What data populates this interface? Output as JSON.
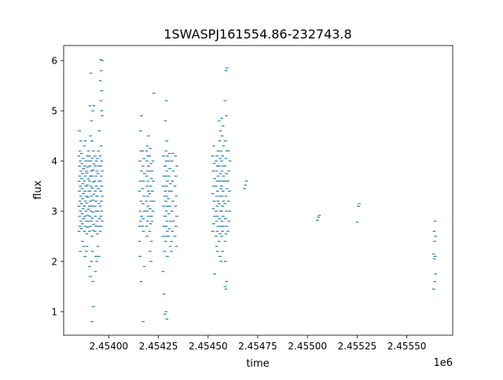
{
  "chart_data": {
    "type": "scatter",
    "title": "1SWASPJ161554.86-232743.8",
    "xlabel": "time",
    "ylabel": "flux",
    "x_offset_label": "1e6",
    "xlim": [
      2453773,
      2455731
    ],
    "ylim": [
      0.53,
      6.3
    ],
    "xticks": [
      2454000,
      2454250,
      2454500,
      2454750,
      2455000,
      2455250,
      2455500
    ],
    "xtick_labels": [
      "2.45400",
      "2.45425",
      "2.45450",
      "2.45475",
      "2.45500",
      "2.45525",
      "2.45550"
    ],
    "yticks": [
      1,
      2,
      3,
      4,
      5,
      6
    ],
    "ytick_labels": [
      "1",
      "2",
      "3",
      "4",
      "5",
      "6"
    ],
    "grid": false,
    "marker_color": "#1f77b4",
    "columns": [
      {
        "x": 2453855,
        "y": [
          2.6,
          2.7,
          2.8,
          2.9,
          3.0,
          3.1,
          3.2,
          3.3,
          3.4,
          3.5,
          3.6,
          3.7,
          3.8,
          3.9,
          4.0,
          4.1,
          4.2,
          4.4,
          4.6,
          2.2
        ]
      },
      {
        "x": 2453868,
        "y": [
          2.65,
          2.75,
          2.85,
          2.95,
          3.05,
          3.15,
          3.25,
          3.35,
          3.45,
          3.55,
          3.65,
          3.75,
          3.85,
          3.95,
          4.05,
          4.15,
          2.4,
          2.3
        ]
      },
      {
        "x": 2453882,
        "y": [
          2.6,
          2.7,
          2.8,
          2.9,
          3.0,
          3.1,
          3.2,
          3.3,
          3.4,
          3.5,
          3.6,
          3.7,
          3.8,
          3.9,
          4.0,
          4.3,
          4.4,
          2.2,
          2.1
        ]
      },
      {
        "x": 2453895,
        "y": [
          2.55,
          2.68,
          2.8,
          2.92,
          3.04,
          3.16,
          3.28,
          3.4,
          3.52,
          3.64,
          3.76,
          3.88,
          4.0,
          4.1,
          4.2,
          2.3
        ]
      },
      {
        "x": 2453908,
        "y": [
          2.6,
          2.7,
          2.8,
          2.9,
          3.0,
          3.1,
          3.2,
          3.3,
          3.4,
          3.5,
          3.6,
          3.7,
          3.8,
          3.9,
          4.0,
          4.1,
          4.5,
          4.8,
          5.1,
          5.75,
          1.9,
          1.7,
          2.0
        ]
      },
      {
        "x": 2453920,
        "y": [
          2.5,
          2.62,
          2.74,
          2.86,
          2.98,
          3.1,
          3.22,
          3.34,
          3.46,
          3.58,
          3.7,
          3.82,
          3.94,
          4.06,
          4.2,
          4.4,
          5.0,
          5.1,
          2.2,
          1.1,
          0.8,
          1.6
        ]
      },
      {
        "x": 2453935,
        "y": [
          2.6,
          2.7,
          2.8,
          2.9,
          3.0,
          3.1,
          3.2,
          3.3,
          3.4,
          3.5,
          3.6,
          3.7,
          3.8,
          3.9,
          4.0,
          4.1,
          2.1,
          2.0,
          1.8
        ]
      },
      {
        "x": 2453948,
        "y": [
          2.55,
          2.7,
          2.85,
          3.0,
          3.15,
          3.3,
          3.45,
          3.6,
          3.75,
          3.9,
          4.05,
          4.2,
          4.6,
          2.3,
          2.1
        ]
      },
      {
        "x": 2453962,
        "y": [
          2.6,
          2.7,
          2.8,
          2.9,
          3.0,
          3.1,
          3.2,
          3.3,
          3.4,
          3.5,
          3.6,
          3.7,
          3.8,
          3.9,
          4.0,
          4.1,
          4.3,
          4.9,
          5.2,
          5.4,
          5.6,
          5.8,
          6.0,
          6.02,
          5.0
        ]
      },
      {
        "x": 2454160,
        "y": [
          2.7,
          2.8,
          2.9,
          3.0,
          3.2,
          3.4,
          3.6,
          3.8,
          4.0,
          4.2,
          2.4,
          4.6,
          4.9,
          2.1,
          1.6
        ]
      },
      {
        "x": 2454175,
        "y": [
          2.7,
          2.85,
          3.0,
          3.15,
          3.3,
          3.45,
          3.6,
          3.75,
          3.9,
          4.05,
          4.2,
          2.6,
          1.9,
          0.8
        ]
      },
      {
        "x": 2454195,
        "y": [
          2.7,
          2.8,
          2.9,
          3.0,
          3.1,
          3.2,
          3.3,
          3.4,
          3.5,
          3.6,
          3.7,
          3.8,
          3.9,
          4.0,
          4.1,
          4.2,
          4.3,
          4.5,
          2.5
        ]
      },
      {
        "x": 2454210,
        "y": [
          2.6,
          2.75,
          2.9,
          3.05,
          3.2,
          3.35,
          3.5,
          3.65,
          3.8,
          3.95,
          4.1,
          4.25,
          2.4,
          2.2,
          2.0
        ]
      },
      {
        "x": 2454222,
        "y": [
          2.8,
          3.0,
          3.2,
          3.4,
          3.6,
          3.8,
          4.0,
          5.35
        ]
      },
      {
        "x": 2454278,
        "y": [
          2.5,
          2.7,
          2.9,
          3.1,
          3.3,
          3.5,
          3.7,
          3.9,
          4.1,
          2.2,
          1.8,
          1.35,
          0.95
        ]
      },
      {
        "x": 2454290,
        "y": [
          2.4,
          2.5,
          2.6,
          2.7,
          2.8,
          2.9,
          3.0,
          3.1,
          3.2,
          3.3,
          3.4,
          3.5,
          3.6,
          3.7,
          3.8,
          3.9,
          4.0,
          4.1,
          4.2,
          4.4,
          4.8,
          5.2,
          2.1,
          1.0,
          0.85
        ]
      },
      {
        "x": 2454305,
        "y": [
          2.5,
          2.65,
          2.8,
          2.95,
          3.1,
          3.25,
          3.4,
          3.55,
          3.7,
          3.85,
          4.0,
          4.15,
          2.3
        ]
      },
      {
        "x": 2454320,
        "y": [
          2.4,
          2.6,
          2.8,
          3.0,
          3.2,
          3.4,
          3.6,
          3.8,
          4.0,
          4.15,
          2.2
        ]
      },
      {
        "x": 2454338,
        "y": [
          2.5,
          2.7,
          2.9,
          3.1,
          3.3,
          3.5,
          3.7,
          3.9,
          4.1,
          2.3
        ]
      },
      {
        "x": 2454528,
        "y": [
          2.6,
          2.75,
          2.9,
          3.05,
          3.2,
          3.35,
          3.5,
          3.65,
          3.8,
          3.95,
          4.1,
          4.3,
          1.75
        ]
      },
      {
        "x": 2454545,
        "y": [
          2.5,
          2.6,
          2.7,
          2.8,
          2.9,
          3.0,
          3.1,
          3.2,
          3.3,
          3.4,
          3.5,
          3.6,
          3.7,
          3.8,
          3.9,
          4.0,
          4.1,
          4.2,
          2.3,
          2.2
        ]
      },
      {
        "x": 2454560,
        "y": [
          2.4,
          2.55,
          2.7,
          2.85,
          3.0,
          3.15,
          3.3,
          3.45,
          3.6,
          3.75,
          3.9,
          4.05,
          4.2,
          4.4,
          4.6,
          4.8,
          2.1,
          2.0
        ]
      },
      {
        "x": 2454573,
        "y": [
          2.5,
          2.6,
          2.7,
          2.8,
          2.9,
          3.0,
          3.1,
          3.2,
          3.3,
          3.4,
          3.5,
          3.6,
          3.7,
          3.8,
          3.9,
          4.0,
          4.1,
          4.3,
          4.5,
          4.7,
          4.85,
          2.2
        ]
      },
      {
        "x": 2454590,
        "y": [
          2.4,
          2.55,
          2.7,
          2.85,
          3.0,
          3.15,
          3.3,
          3.45,
          3.6,
          3.75,
          3.9,
          4.05,
          4.2,
          4.4,
          4.9,
          5.2,
          5.8,
          5.85,
          2.0,
          1.6,
          1.5,
          1.45
        ]
      },
      {
        "x": 2454605,
        "y": [
          2.6,
          2.8,
          3.0,
          3.2,
          3.4,
          3.6,
          3.8,
          4.0,
          4.2
        ]
      },
      {
        "x": 2454688,
        "y": [
          3.45,
          3.52,
          3.6
        ]
      },
      {
        "x": 2455055,
        "y": [
          2.82,
          2.88,
          2.92
        ]
      },
      {
        "x": 2455256,
        "y": [
          2.78,
          3.1,
          3.15
        ]
      },
      {
        "x": 2455640,
        "y": [
          1.45,
          1.6,
          1.75,
          2.05,
          2.1,
          2.15,
          2.4,
          2.5,
          2.6,
          2.8
        ]
      }
    ]
  }
}
